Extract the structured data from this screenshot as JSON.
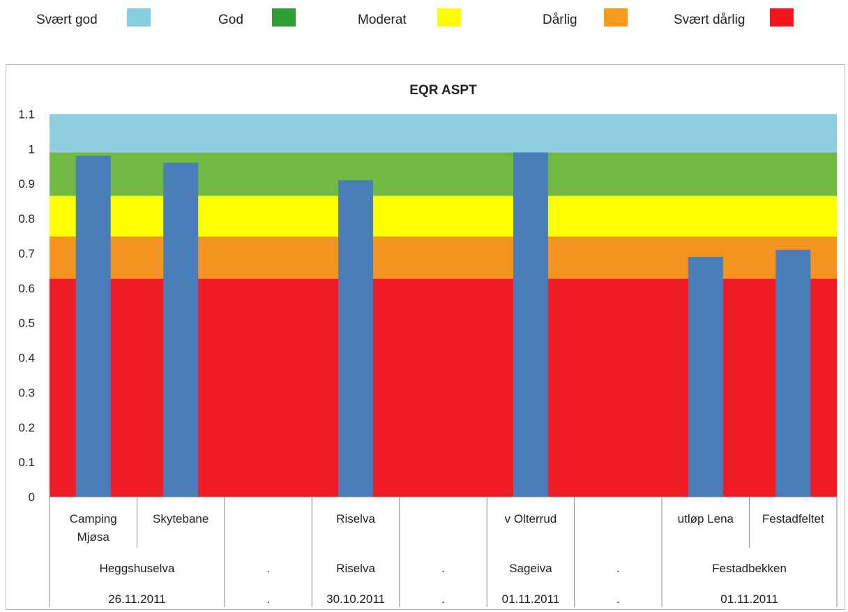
{
  "legend": [
    {
      "label": "Svært god",
      "color": "#87cee3"
    },
    {
      "label": "God",
      "color": "#2e9e34"
    },
    {
      "label": "Moderat",
      "color": "#fdfd00"
    },
    {
      "label": "Dårlig",
      "color": "#f79a1e"
    },
    {
      "label": "Svært dårlig",
      "color": "#f0161e"
    }
  ],
  "chart_data": {
    "type": "bar",
    "title": "EQR ASPT",
    "ylim": [
      0,
      1.1
    ],
    "yticks": [
      "0",
      "0.1",
      "0.2",
      "0.3",
      "0.4",
      "0.5",
      "0.6",
      "0.7",
      "0.8",
      "0.9",
      "1",
      "1.1"
    ],
    "bands": [
      {
        "class": "Svært dårlig",
        "from": 0,
        "to": 0.627,
        "color": "#ee1c25"
      },
      {
        "class": "Dårlig",
        "from": 0.627,
        "to": 0.748,
        "color": "#f39421"
      },
      {
        "class": "Moderat",
        "from": 0.748,
        "to": 0.865,
        "color": "#ffff00"
      },
      {
        "class": "God",
        "from": 0.865,
        "to": 0.99,
        "color": "#72b944"
      },
      {
        "class": "Svært god",
        "from": 0.99,
        "to": 1.1,
        "color": "#8dcfe1"
      }
    ],
    "bar_color": "#4a7ebb",
    "categories": [
      "Camping Mjøsa",
      "Skytebane",
      "",
      "Riselva",
      "",
      "v Olterrud",
      "",
      "utløp Lena",
      "Festadfeltet"
    ],
    "values": [
      0.98,
      0.96,
      null,
      0.91,
      null,
      0.99,
      null,
      0.69,
      0.71
    ],
    "groups": [
      {
        "river": "Heggshuselva",
        "date": "26.11.2011",
        "span": 2
      },
      {
        "river": ".",
        "date": ".",
        "span": 1
      },
      {
        "river": "Riselva",
        "date": "30.10.2011",
        "span": 1
      },
      {
        "river": ".",
        "date": ".",
        "span": 1
      },
      {
        "river": "Sageiva",
        "date": "01.11.2011",
        "span": 1
      },
      {
        "river": ".",
        "date": ".",
        "span": 1
      },
      {
        "river": "Festadbekken",
        "date": "01.11.2011",
        "span": 2
      }
    ]
  }
}
